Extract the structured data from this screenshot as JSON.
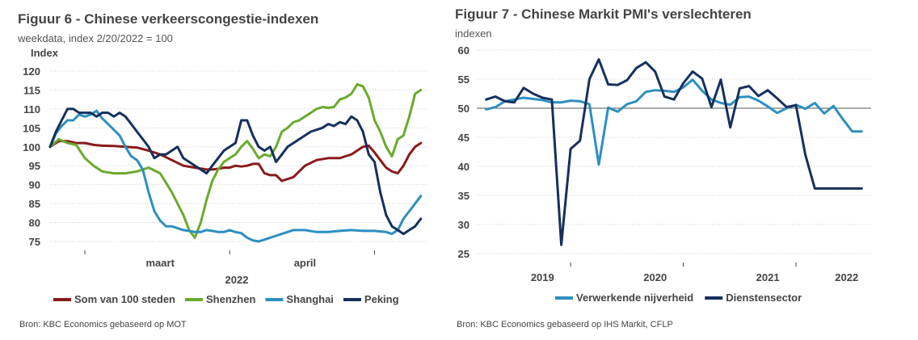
{
  "chart_data": [
    {
      "type": "line",
      "title": "Figuur 6 - Chinese verkeerscongestie-indexen",
      "subtitle": "weekdata, index 2/20/2022 = 100",
      "ylabel": "Index",
      "ylim": [
        75,
        120
      ],
      "yticks": [
        75,
        80,
        85,
        90,
        95,
        100,
        105,
        110,
        115,
        120
      ],
      "xlim": [
        0,
        130
      ],
      "xtick_labels": [
        {
          "label": "maart",
          "x": 38
        },
        {
          "label": "april",
          "x": 88
        }
      ],
      "xlabel": "2022",
      "grid": true,
      "legend": "bottom",
      "source": "Bron: KBC Economics gebaseerd op MOT",
      "series": [
        {
          "name": "Som van 100 steden",
          "color": "#8b1a1a",
          "x": [
            0,
            3,
            6,
            9,
            12,
            15,
            18,
            22,
            26,
            30,
            34,
            38,
            42,
            46,
            50,
            54,
            56,
            58,
            60,
            62,
            64,
            66,
            68,
            70,
            72,
            74,
            76,
            78,
            80,
            84,
            88,
            92,
            96,
            98,
            100,
            102,
            104,
            106,
            108,
            110,
            112,
            114,
            116,
            118,
            120,
            122,
            124,
            126,
            128
          ],
          "y": [
            100,
            101.5,
            101.5,
            101,
            101,
            100.5,
            100.3,
            100.2,
            100,
            99.8,
            99,
            98,
            96.5,
            95,
            94.5,
            94,
            94,
            94.2,
            94.5,
            94.5,
            95,
            94.8,
            95,
            95.5,
            95.5,
            93,
            92.5,
            92.5,
            91,
            92,
            95,
            96.5,
            97,
            97,
            97,
            97.5,
            98,
            99,
            100,
            100.3,
            98.5,
            96.5,
            94.5,
            93.5,
            93,
            95,
            98,
            100,
            101
          ]
        },
        {
          "name": "Shenzhen",
          "color": "#6aaa2e",
          "x": [
            0,
            3,
            6,
            9,
            12,
            15,
            18,
            22,
            26,
            30,
            34,
            38,
            42,
            46,
            48,
            50,
            52,
            54,
            56,
            58,
            60,
            62,
            64,
            66,
            68,
            70,
            72,
            74,
            76,
            78,
            80,
            82,
            84,
            86,
            88,
            90,
            92,
            94,
            96,
            98,
            100,
            102,
            104,
            106,
            108,
            110,
            112,
            114,
            116,
            118,
            120,
            122,
            124,
            126,
            128
          ],
          "y": [
            100,
            102,
            101,
            100.5,
            97,
            95,
            93.5,
            93,
            93,
            93.5,
            94.5,
            93,
            88,
            82,
            78,
            76,
            80,
            86,
            91,
            94,
            96,
            97,
            98,
            100,
            101.5,
            99.5,
            97,
            98,
            97.5,
            100,
            104,
            105,
            106.5,
            107,
            108,
            109,
            110,
            110.5,
            110.3,
            110.5,
            112.5,
            113,
            114,
            116.5,
            116,
            113,
            107,
            104,
            100,
            97.5,
            102,
            103,
            108,
            114,
            115
          ]
        },
        {
          "name": "Shanghai",
          "color": "#2d8fbf",
          "x": [
            0,
            2,
            4,
            6,
            8,
            10,
            12,
            14,
            16,
            18,
            20,
            22,
            24,
            26,
            28,
            30,
            32,
            34,
            36,
            38,
            40,
            42,
            44,
            46,
            48,
            50,
            52,
            54,
            56,
            58,
            60,
            62,
            64,
            66,
            68,
            70,
            72,
            74,
            76,
            78,
            80,
            84,
            88,
            92,
            96,
            100,
            104,
            108,
            112,
            116,
            118,
            120,
            122,
            124,
            126,
            128
          ],
          "y": [
            100,
            103.5,
            105.5,
            107,
            107,
            108.5,
            108,
            108.5,
            109.5,
            107.5,
            106,
            104.5,
            103,
            100,
            97.5,
            96.5,
            94,
            88,
            83,
            80.5,
            79,
            79,
            78.5,
            78,
            77.8,
            77.5,
            77.5,
            78,
            77.8,
            77.5,
            77.5,
            78,
            77.5,
            77.2,
            76,
            75.3,
            75,
            75.5,
            76,
            76.5,
            77,
            78,
            78,
            77.5,
            77.5,
            77.8,
            78,
            77.8,
            77.8,
            77.5,
            77,
            78,
            81,
            83,
            85,
            87
          ]
        },
        {
          "name": "Peking",
          "color": "#15305c",
          "x": [
            0,
            2,
            4,
            6,
            8,
            10,
            12,
            14,
            16,
            18,
            20,
            22,
            24,
            26,
            28,
            30,
            32,
            34,
            36,
            38,
            40,
            42,
            44,
            46,
            48,
            50,
            52,
            54,
            56,
            58,
            60,
            62,
            64,
            66,
            68,
            70,
            72,
            74,
            76,
            78,
            80,
            82,
            84,
            86,
            88,
            90,
            92,
            94,
            96,
            98,
            100,
            102,
            104,
            106,
            108,
            110,
            112,
            114,
            116,
            118,
            120,
            122,
            124,
            126,
            128
          ],
          "y": [
            100,
            104,
            107,
            110,
            110,
            109,
            109,
            109,
            108,
            109,
            109,
            108,
            109,
            108,
            106,
            104,
            102,
            100,
            97,
            98,
            98,
            99,
            100,
            97,
            96,
            95,
            94,
            93,
            95,
            97,
            99,
            100,
            101,
            107,
            107,
            103,
            100,
            99,
            100,
            96,
            98,
            100,
            101,
            102,
            103,
            104,
            104.5,
            105,
            106,
            105.5,
            106.5,
            106,
            108,
            107,
            104,
            98,
            96,
            88,
            82,
            79,
            78,
            77,
            78,
            79,
            81
          ]
        }
      ]
    },
    {
      "type": "line",
      "title": "Figuur 7 - Chinese Markit PMI's verslechteren",
      "subtitle": "indexen",
      "ylim": [
        25,
        60
      ],
      "yticks": [
        25,
        30,
        35,
        40,
        45,
        50,
        55,
        60
      ],
      "xlim": [
        2018.917,
        2022.417
      ],
      "xtick_labels": [
        {
          "label": "2019",
          "x": 2019.5
        },
        {
          "label": "2020",
          "x": 2020.5
        },
        {
          "label": "2021",
          "x": 2021.5
        },
        {
          "label": "2022",
          "x": 2022.2
        }
      ],
      "reference_line": 50,
      "grid": true,
      "legend": "bottom",
      "source": "Bron: KBC Economics gebaseerd op IHS Markit, CFLP",
      "series": [
        {
          "name": "Verwerkende nijverheid",
          "color": "#2d8fbf",
          "x": [
            2019.0,
            2019.083,
            2019.167,
            2019.25,
            2019.333,
            2019.417,
            2019.5,
            2019.583,
            2019.667,
            2019.75,
            2019.833,
            2019.917,
            2020.0,
            2020.083,
            2020.167,
            2020.25,
            2020.333,
            2020.417,
            2020.5,
            2020.583,
            2020.667,
            2020.75,
            2020.833,
            2020.917,
            2021.0,
            2021.083,
            2021.167,
            2021.25,
            2021.333,
            2021.417,
            2021.5,
            2021.583,
            2021.667,
            2021.75,
            2021.833,
            2021.917,
            2022.0,
            2022.083,
            2022.167,
            2022.25,
            2022.333
          ],
          "y": [
            49.8,
            50.2,
            51.2,
            51.5,
            51.8,
            51.6,
            51.4,
            51.0,
            51.0,
            51.3,
            51.2,
            50.7,
            40.3,
            50.1,
            49.4,
            50.7,
            51.2,
            52.8,
            53.1,
            53.0,
            52.8,
            53.6,
            54.9,
            53.0,
            51.5,
            50.9,
            50.6,
            51.9,
            52.0,
            51.3,
            50.3,
            49.2,
            50.0,
            50.6,
            49.9,
            50.9,
            49.1,
            50.4,
            48.1,
            46.0,
            46.0
          ]
        },
        {
          "name": "Dienstensector",
          "color": "#15305c",
          "x": [
            2019.0,
            2019.083,
            2019.167,
            2019.25,
            2019.333,
            2019.417,
            2019.5,
            2019.583,
            2019.667,
            2019.75,
            2019.833,
            2019.917,
            2020.0,
            2020.083,
            2020.167,
            2020.25,
            2020.333,
            2020.417,
            2020.5,
            2020.583,
            2020.667,
            2020.75,
            2020.833,
            2020.917,
            2021.0,
            2021.083,
            2021.167,
            2021.25,
            2021.333,
            2021.417,
            2021.5,
            2021.583,
            2021.667,
            2021.75,
            2021.833,
            2021.917,
            2022.0,
            2022.083,
            2022.167,
            2022.25,
            2022.333
          ],
          "y": [
            51.5,
            52.0,
            51.2,
            51.0,
            53.5,
            52.5,
            51.8,
            51.5,
            26.5,
            43.0,
            44.4,
            55.0,
            58.4,
            54.1,
            54.0,
            54.8,
            56.9,
            57.9,
            56.3,
            52.0,
            51.5,
            54.3,
            56.3,
            55.1,
            50.2,
            54.9,
            46.7,
            53.4,
            53.8,
            52.1,
            53.1,
            51.7,
            50.2,
            50.5,
            42.0,
            36.2,
            36.2,
            36.2,
            36.2,
            36.2,
            36.2
          ]
        }
      ]
    }
  ]
}
